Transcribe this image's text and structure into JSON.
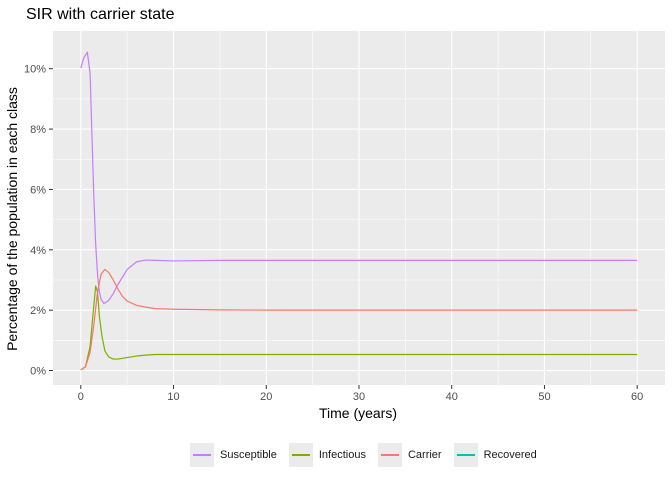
{
  "chart_data": {
    "type": "line",
    "title": "SIR with carrier state",
    "xlabel": "Time (years)",
    "ylabel": "Percentage of the population in each class",
    "xlim": [
      -3,
      63
    ],
    "ylim": [
      -0.0048,
      0.1125
    ],
    "x_ticks": [
      0,
      10,
      20,
      30,
      40,
      50,
      60
    ],
    "x_tick_labels": [
      "0",
      "10",
      "20",
      "30",
      "40",
      "50",
      "60"
    ],
    "y_ticks": [
      0,
      0.02,
      0.04,
      0.06,
      0.08,
      0.1
    ],
    "y_tick_labels": [
      "0%",
      "2%",
      "4%",
      "6%",
      "8%",
      "10%"
    ],
    "grid": true,
    "legend_position": "bottom",
    "series": [
      {
        "name": "Susceptible",
        "color": "#C77CFF",
        "points": [
          [
            0,
            0.1002
          ],
          [
            0.3,
            0.1035
          ],
          [
            0.7,
            0.1055
          ],
          [
            1.0,
            0.0985
          ],
          [
            1.2,
            0.078
          ],
          [
            1.4,
            0.058
          ],
          [
            1.6,
            0.042
          ],
          [
            1.8,
            0.032
          ],
          [
            2.0,
            0.026
          ],
          [
            2.2,
            0.0235
          ],
          [
            2.5,
            0.0222
          ],
          [
            3.0,
            0.0232
          ],
          [
            3.5,
            0.0255
          ],
          [
            4.0,
            0.0285
          ],
          [
            5.0,
            0.0335
          ],
          [
            6.0,
            0.036
          ],
          [
            7.0,
            0.0366
          ],
          [
            8.0,
            0.0365
          ],
          [
            10,
            0.0363
          ],
          [
            15,
            0.0365
          ],
          [
            20,
            0.0365
          ],
          [
            30,
            0.0365
          ],
          [
            40,
            0.0365
          ],
          [
            50,
            0.0365
          ],
          [
            60,
            0.0365
          ]
        ]
      },
      {
        "name": "Infectious",
        "color": "#7CAE00",
        "points": [
          [
            0,
            0.0002
          ],
          [
            0.5,
            0.0012
          ],
          [
            1.0,
            0.008
          ],
          [
            1.3,
            0.018
          ],
          [
            1.6,
            0.028
          ],
          [
            1.8,
            0.026
          ],
          [
            2.0,
            0.018
          ],
          [
            2.3,
            0.011
          ],
          [
            2.6,
            0.0065
          ],
          [
            3.0,
            0.0045
          ],
          [
            3.5,
            0.0038
          ],
          [
            4.0,
            0.0038
          ],
          [
            5.0,
            0.0043
          ],
          [
            6.0,
            0.0048
          ],
          [
            7.0,
            0.0051
          ],
          [
            8.0,
            0.0053
          ],
          [
            10,
            0.0053
          ],
          [
            15,
            0.0053
          ],
          [
            20,
            0.0053
          ],
          [
            30,
            0.0053
          ],
          [
            40,
            0.0053
          ],
          [
            50,
            0.0053
          ],
          [
            60,
            0.0053
          ]
        ]
      },
      {
        "name": "Carrier",
        "color": "#F8766D",
        "points": [
          [
            0,
            0.0002
          ],
          [
            0.5,
            0.0012
          ],
          [
            1.0,
            0.006
          ],
          [
            1.4,
            0.015
          ],
          [
            1.8,
            0.026
          ],
          [
            2.2,
            0.032
          ],
          [
            2.6,
            0.0335
          ],
          [
            3.0,
            0.0325
          ],
          [
            3.5,
            0.03
          ],
          [
            4.0,
            0.027
          ],
          [
            4.5,
            0.0245
          ],
          [
            5.0,
            0.023
          ],
          [
            6.0,
            0.0216
          ],
          [
            7.0,
            0.021
          ],
          [
            8.0,
            0.0205
          ],
          [
            10,
            0.0203
          ],
          [
            15,
            0.0201
          ],
          [
            20,
            0.02
          ],
          [
            30,
            0.02
          ],
          [
            40,
            0.02
          ],
          [
            50,
            0.02
          ],
          [
            60,
            0.02
          ]
        ]
      },
      {
        "name": "Recovered",
        "color": "#00BFC4",
        "points": []
      }
    ]
  }
}
